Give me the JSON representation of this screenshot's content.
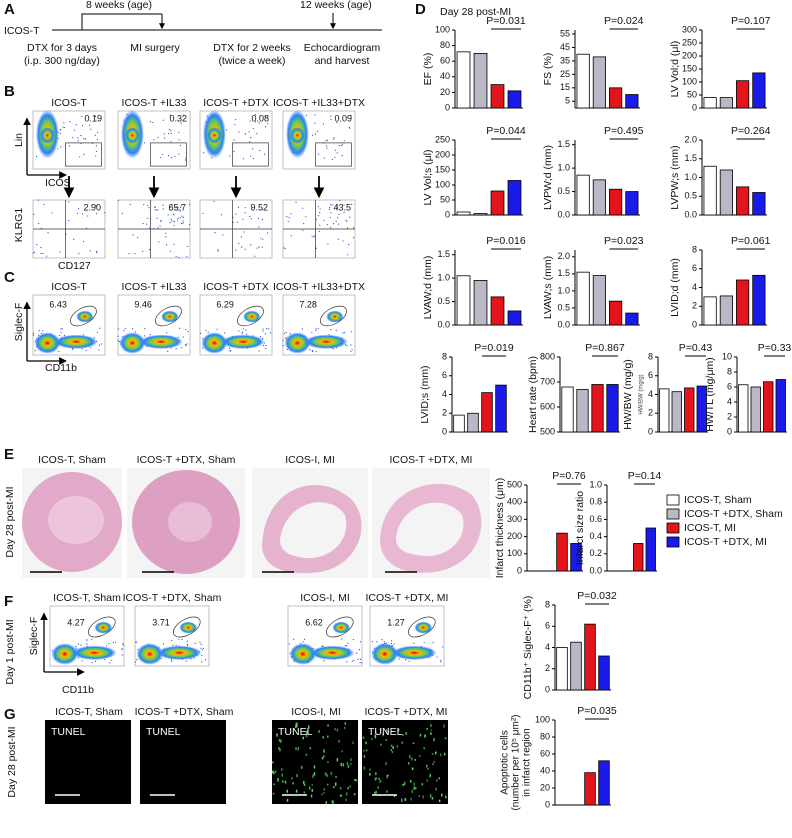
{
  "panel_A": {
    "letter": "A",
    "strain": "ICOS-T",
    "age_start": "8 weeks (age)",
    "age_end": "12 weeks (age)",
    "steps": [
      "DTX for 3 days",
      "(i.p. 300 ng/day)",
      "MI surgery",
      "DTX for 2 weeks",
      "(twice a week)",
      "Echocardiogram",
      "and harvest"
    ]
  },
  "panel_B": {
    "letter": "B",
    "titles": [
      "ICOS-T",
      "ICOS-T +IL33",
      "ICOS-T +DTX",
      "ICOS-T +IL33+DTX"
    ],
    "row1_gates": [
      "0.19",
      "0.32",
      "0.08",
      "0.09"
    ],
    "row2_gates": [
      "2.90",
      "65.7",
      "9.52",
      "43.5"
    ],
    "row1_ylabel": "Lin",
    "row1_xlabel": "ICOS",
    "row2_ylabel": "KLRG1",
    "row2_xlabel": "CD127"
  },
  "panel_C": {
    "letter": "C",
    "titles": [
      "ICOS-T",
      "ICOS-T +IL33",
      "ICOS-T +DTX",
      "ICOS-T +IL33+DTX"
    ],
    "gates": [
      "6.43",
      "9.46",
      "6.29",
      "7.28"
    ],
    "ylabel": "Siglec-F",
    "xlabel": "CD11b"
  },
  "panel_D": {
    "letter": "D",
    "subtitle": "Day 28 post-MI"
  },
  "panel_E": {
    "letter": "E",
    "side": "Day 28 post-MI",
    "titles": [
      "ICOS-T, Sham",
      "ICOS-T +DTX, Sham",
      "ICOS-I, MI",
      "ICOS-T +DTX, MI"
    ]
  },
  "panel_F": {
    "letter": "F",
    "side": "Day 1 post-MI",
    "titles": [
      "ICOS-T, Sham",
      "ICOS-T +DTX, Sham",
      "ICOS-I, MI",
      "ICOS-T +DTX, MI"
    ],
    "gates": [
      "4.27",
      "3.71",
      "6.62",
      "1.27"
    ],
    "ylabel": "Siglec-F",
    "xlabel": "CD11b"
  },
  "panel_G": {
    "letter": "G",
    "side": "Day 28 post-MI",
    "titles": [
      "ICOS-T, Sham",
      "ICOS-T +DTX, Sham",
      "ICOS-I, MI",
      "ICOS-T +DTX, MI"
    ],
    "stain": [
      "TUNEL",
      "TUNEL",
      "TUNEL",
      "TUNEL"
    ]
  },
  "groups": [
    {
      "name": "ICOS-T, Sham",
      "color": "#ffffff"
    },
    {
      "name": "ICOS-T +DTX, Sham",
      "color": "#b8b8c6"
    },
    {
      "name": "ICOS-T, MI",
      "color": "#e3151a"
    },
    {
      "name": "ICOS-T +DTX, MI",
      "color": "#1a1aeb"
    }
  ],
  "chart_data": [
    {
      "type": "bar",
      "ylabel": "EF (%)",
      "values": [
        72,
        70,
        30,
        22
      ],
      "ylim": [
        0,
        100
      ],
      "yticks": [
        0,
        20,
        40,
        60,
        80,
        100
      ],
      "p_label": "P=0.031"
    },
    {
      "type": "bar",
      "ylabel": "FS (%)",
      "values": [
        40,
        38,
        15,
        10
      ],
      "ylim": [
        0,
        58
      ],
      "yticks": [
        5,
        15,
        25,
        35,
        45,
        55
      ],
      "p_label": "P=0.024"
    },
    {
      "type": "bar",
      "ylabel": "LV Vol;d (μl)",
      "values": [
        40,
        40,
        105,
        135
      ],
      "ylim": [
        0,
        300
      ],
      "yticks": [
        0,
        50,
        100,
        150,
        200,
        250,
        300
      ],
      "p_label": "P=0.107"
    },
    {
      "type": "bar",
      "ylabel": "LV Vol;s (μl)",
      "values": [
        10,
        5,
        80,
        115
      ],
      "ylim": [
        0,
        250
      ],
      "yticks": [
        0,
        50,
        100,
        150,
        200,
        250
      ],
      "p_label": "P=0.044"
    },
    {
      "type": "bar",
      "ylabel": "LVPW;d (mm)",
      "values": [
        0.85,
        0.75,
        0.55,
        0.5
      ],
      "ylim": [
        0,
        1.6
      ],
      "yticks": [
        {
          "value": 0,
          "label": "0.0"
        },
        0.5,
        {
          "value": 1,
          "label": "1.0"
        },
        1.5
      ],
      "p_label": "P=0.495"
    },
    {
      "type": "bar",
      "ylabel": "LVPW;s (mm)",
      "values": [
        1.3,
        1.2,
        0.75,
        0.6
      ],
      "ylim": [
        0,
        2
      ],
      "yticks": [
        {
          "value": 0,
          "label": "0.0"
        },
        0.5,
        {
          "value": 1,
          "label": "1.0"
        },
        1.5,
        {
          "value": 2,
          "label": "2.0"
        }
      ],
      "p_label": "P=0.264"
    },
    {
      "type": "bar",
      "ylabel": "LVAW;d (mm)",
      "values": [
        1.05,
        0.95,
        0.6,
        0.3
      ],
      "ylim": [
        0,
        1.6
      ],
      "yticks": [
        {
          "value": 0,
          "label": "0.0"
        },
        0.5,
        {
          "value": 1,
          "label": "1.0"
        },
        1.5
      ],
      "p_label": "P=0.016"
    },
    {
      "type": "bar",
      "ylabel": "LVAW;s (mm)",
      "values": [
        1.55,
        1.45,
        0.7,
        0.35
      ],
      "ylim": [
        0,
        2.2
      ],
      "yticks": [
        {
          "value": 0,
          "label": "0.0"
        },
        0.5,
        {
          "value": 1,
          "label": "1.0"
        },
        1.5,
        {
          "value": 2,
          "label": "2.0"
        }
      ],
      "p_label": "P=0.023"
    },
    {
      "type": "bar",
      "ylabel": "LVID;d (mm)",
      "values": [
        3.0,
        3.1,
        4.8,
        5.3
      ],
      "ylim": [
        0,
        8
      ],
      "yticks": [
        0,
        2,
        4,
        6,
        8
      ],
      "p_label": "P=0.061"
    },
    {
      "type": "bar",
      "ylabel": "LVID;s (mm)",
      "values": [
        1.8,
        2.0,
        4.2,
        5.0
      ],
      "ylim": [
        0,
        8
      ],
      "yticks": [
        0,
        2,
        4,
        6,
        8
      ],
      "p_label": "P=0.019"
    },
    {
      "type": "bar",
      "ylabel": "Heart rate (bpm)",
      "values": [
        680,
        670,
        690,
        690
      ],
      "ylim": [
        500,
        800
      ],
      "yticks": [
        500,
        600,
        700,
        800
      ],
      "p_label": "P=0.867"
    },
    {
      "type": "bar",
      "ylabel": "HW/BW (mg/g)",
      "ylabel_small": "HW/BW (mg/g)",
      "values": [
        4.6,
        4.3,
        4.7,
        4.9
      ],
      "ylim": [
        0,
        8
      ],
      "yticks": [
        0,
        2,
        4,
        6,
        8
      ],
      "p_label": "P=0.43"
    },
    {
      "type": "bar",
      "ylabel": "HW/TL (mg/μm)",
      "values": [
        6.3,
        6.0,
        6.7,
        7.0
      ],
      "ylim": [
        0,
        10
      ],
      "yticks": [
        0,
        2,
        4,
        6,
        8,
        10
      ],
      "p_label": "P=0.33"
    },
    {
      "type": "bar",
      "ylabel": "Infarct thickness (μm)",
      "values": [
        null,
        null,
        220,
        160
      ],
      "ylim": [
        0,
        500
      ],
      "yticks": [
        0,
        100,
        200,
        300,
        400,
        500
      ],
      "p_label": "P=0.76"
    },
    {
      "type": "bar",
      "ylabel": "Infarct size ratio",
      "values": [
        null,
        null,
        0.32,
        0.5
      ],
      "ylim": [
        0,
        1
      ],
      "yticks": [
        {
          "value": 0,
          "label": "0.0"
        },
        0.2,
        0.4,
        0.6,
        0.8,
        {
          "value": 1,
          "label": "1.0"
        }
      ],
      "p_label": "P=0.14"
    },
    {
      "type": "bar",
      "ylabel": "CD11b⁺ Siglec-F⁺ (%)",
      "values": [
        4.0,
        4.5,
        6.2,
        3.2
      ],
      "ylim": [
        0,
        8
      ],
      "yticks": [
        0,
        2,
        4,
        6,
        8
      ],
      "p_label": "P=0.032"
    },
    {
      "type": "bar",
      "ylabel": [
        "Apoptotic cells",
        "(number per 10⁵ μm²)",
        "in infarct region"
      ],
      "values": [
        null,
        null,
        38,
        52
      ],
      "ylim": [
        0,
        100
      ],
      "yticks": [
        0,
        20,
        40,
        60,
        80,
        100
      ],
      "p_label": "P=0.035"
    }
  ]
}
